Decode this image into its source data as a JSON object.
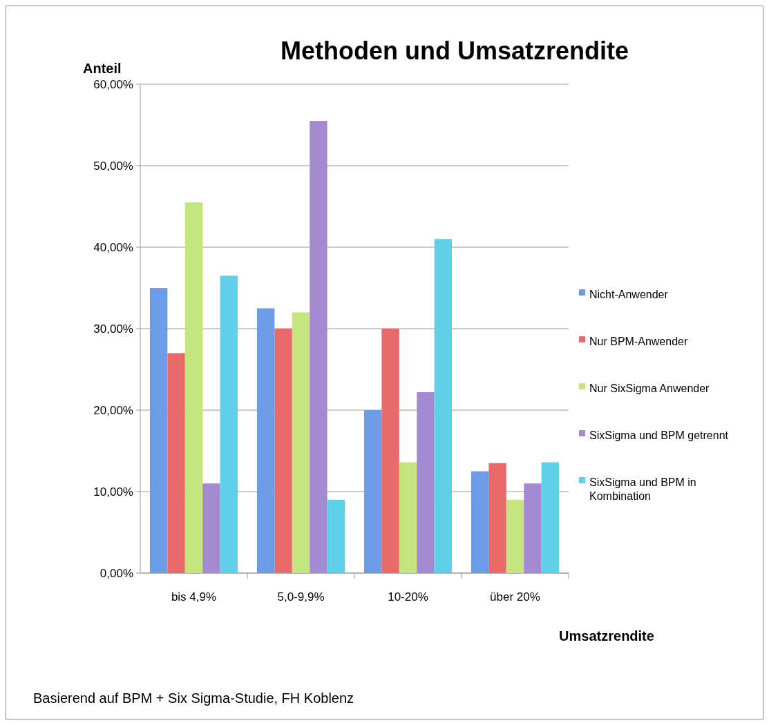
{
  "chart_data": {
    "type": "bar",
    "title": "Methoden und Umsatzrendite",
    "ylabel": "Anteil",
    "xlabel": "Umsatzrendite",
    "categories": [
      "bis 4,9%",
      "5,0-9,9%",
      "10-20%",
      "über 20%"
    ],
    "series": [
      {
        "name": "Nicht-Anwender",
        "color": "#6d9be6",
        "values": [
          35,
          32.5,
          20,
          12.5
        ]
      },
      {
        "name": "Nur BPM-Anwender",
        "color": "#e86a6a",
        "values": [
          27,
          30,
          30,
          13.5
        ]
      },
      {
        "name": "Nur SixSigma Anwender",
        "color": "#c4e57e",
        "values": [
          45.5,
          32,
          13.6,
          9
        ]
      },
      {
        "name": "SixSigma und BPM getrennt",
        "color": "#a48ad0",
        "values": [
          11,
          55.5,
          22.2,
          11
        ]
      },
      {
        "name": "SixSigma und BPM in Kombination",
        "color": "#5fd0e8",
        "values": [
          36.5,
          9,
          41,
          13.6
        ]
      }
    ],
    "ylim": [
      0,
      60
    ],
    "yticks": [
      {
        "value": 0,
        "label": "0,00%"
      },
      {
        "value": 10,
        "label": "10,00%"
      },
      {
        "value": 20,
        "label": "20,00%"
      },
      {
        "value": 30,
        "label": "30,00%"
      },
      {
        "value": 40,
        "label": "40,00%"
      },
      {
        "value": 50,
        "label": "50,00%"
      },
      {
        "value": 60,
        "label": "60,00%"
      }
    ],
    "grid": "y",
    "legend": "right",
    "annotations": [
      "Basierend auf BPM + Six Sigma-Studie, FH Koblenz"
    ]
  }
}
